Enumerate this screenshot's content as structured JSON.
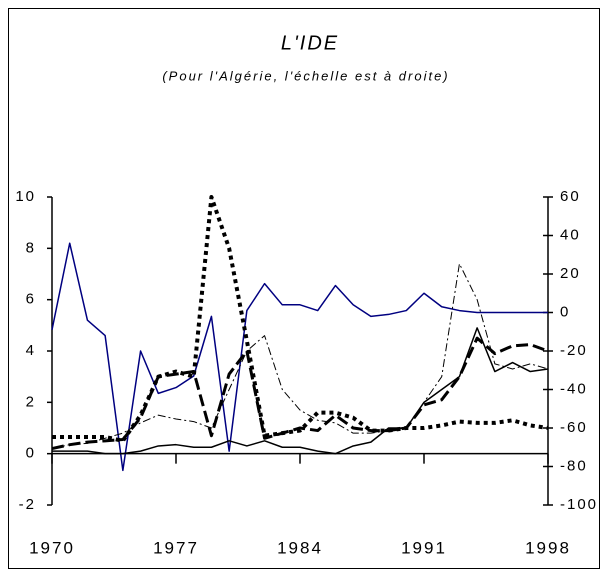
{
  "chart_data": {
    "type": "line",
    "title": "L'IDE",
    "subtitle": "(Pour l'Algérie, l'échelle est à droite)",
    "x": [
      1970,
      1971,
      1972,
      1973,
      1974,
      1975,
      1976,
      1977,
      1978,
      1979,
      1980,
      1981,
      1982,
      1983,
      1984,
      1985,
      1986,
      1987,
      1988,
      1989,
      1990,
      1991,
      1992,
      1993,
      1994,
      1995,
      1996,
      1997,
      1998
    ],
    "xlim": [
      1970,
      1998
    ],
    "xticks": [
      1970,
      1977,
      1984,
      1991,
      1998
    ],
    "ylim": [
      -2,
      10
    ],
    "yticks": [
      -2,
      0,
      2,
      4,
      6,
      8,
      10
    ],
    "y2lim": [
      -100,
      60
    ],
    "y2ticks": [
      -100,
      -80,
      -60,
      -40,
      -20,
      0,
      20,
      40,
      60
    ],
    "series": [
      {
        "color": "#000080",
        "width": 1.5,
        "dash": "none",
        "axis": "y2",
        "values": [
          -9,
          36,
          -4,
          -12,
          -82,
          -20,
          -42,
          -39,
          -33,
          -2,
          -72,
          1,
          15,
          4,
          4,
          1,
          14,
          4,
          -2,
          -1,
          1,
          10,
          3,
          1,
          0,
          0,
          0,
          0,
          0
        ]
      },
      {
        "color": "#000000",
        "width": 1.5,
        "dash": "none",
        "values": [
          0.1,
          0.1,
          0.1,
          0.0,
          0.0,
          0.1,
          0.3,
          0.35,
          0.25,
          0.25,
          0.5,
          0.3,
          0.5,
          0.25,
          0.25,
          0.1,
          0.0,
          0.3,
          0.45,
          1.0,
          1.0,
          2.0,
          2.5,
          3.0,
          4.9,
          3.2,
          3.55,
          3.2,
          3.3
        ]
      },
      {
        "color": "#000000",
        "width": 4,
        "dash": "4 4",
        "values": [
          0.65,
          0.65,
          0.65,
          0.65,
          0.5,
          1.5,
          3.0,
          3.2,
          3.0,
          10,
          8.0,
          4.4,
          0.7,
          0.8,
          0.9,
          1.6,
          1.6,
          1.4,
          0.9,
          0.9,
          1.0,
          1.0,
          1.1,
          1.25,
          1.2,
          1.2,
          1.3,
          1.1,
          1.0
        ]
      },
      {
        "color": "#000000",
        "width": 1,
        "dash": "8 3 2 3",
        "values": [
          0.2,
          0.35,
          0.4,
          0.6,
          0.8,
          1.2,
          1.5,
          1.35,
          1.25,
          1.0,
          2.5,
          4.0,
          4.6,
          2.5,
          1.7,
          1.3,
          1.2,
          0.8,
          0.8,
          0.9,
          1.0,
          2.0,
          3.0,
          7.4,
          6.0,
          3.5,
          3.3,
          3.5,
          3.3
        ]
      },
      {
        "color": "#000000",
        "width": 3,
        "dash": "12 5",
        "values": [
          0.2,
          0.35,
          0.45,
          0.5,
          0.55,
          1.4,
          3.0,
          3.1,
          3.2,
          0.7,
          3.1,
          4.0,
          0.6,
          0.8,
          1.0,
          0.9,
          1.5,
          1.0,
          0.9,
          0.9,
          1.0,
          1.9,
          2.1,
          3.0,
          4.5,
          3.9,
          4.2,
          4.25,
          4.0
        ]
      }
    ]
  }
}
